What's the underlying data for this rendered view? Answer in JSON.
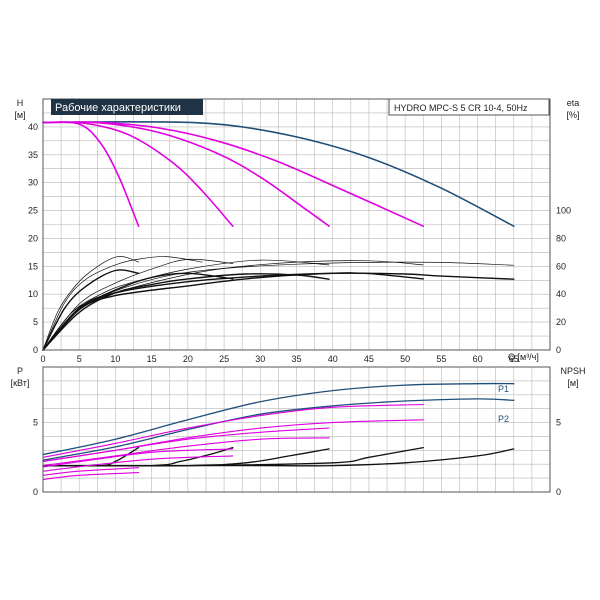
{
  "title": "Рабочие характеристики",
  "model": "HYDRO MPC-S 5 CR 10-4, 50Hz",
  "colors": {
    "blue": "#1f4e79",
    "magenta": "#e000e0",
    "black": "#111111",
    "grid": "#b8b8b8",
    "frame": "#555555",
    "title_bg": "#1f3345"
  },
  "chart_data": [
    {
      "type": "line",
      "name": "head-and-efficiency",
      "x_axis": {
        "unit": "Q [м³/ч]",
        "range": [
          0,
          70
        ],
        "ticks": [
          0,
          5,
          10,
          15,
          20,
          25,
          30,
          35,
          40,
          45,
          50,
          55,
          60,
          65
        ]
      },
      "left_axis": {
        "label": "H",
        "unit": "[м]",
        "range": [
          0,
          45
        ],
        "ticks": [
          0,
          5,
          10,
          15,
          20,
          25,
          30,
          35,
          40
        ]
      },
      "right_axis": {
        "label": "eta",
        "unit": "[%]",
        "range": [
          0,
          180
        ],
        "ticks": [
          0,
          20,
          40,
          60,
          80,
          100
        ]
      },
      "grid": true,
      "head_curves": [
        {
          "color": "blue",
          "x": [
            0,
            15,
            25,
            35,
            45,
            55,
            65
          ],
          "y": [
            40.8,
            40.9,
            40.4,
            38.2,
            34.5,
            29,
            22.2
          ]
        },
        {
          "color": "magenta",
          "x": [
            0,
            8,
            16,
            24,
            32,
            40,
            52.5
          ],
          "y": [
            40.8,
            40.8,
            39.8,
            37.5,
            34,
            29.5,
            22.2
          ]
        },
        {
          "color": "magenta",
          "x": [
            0,
            8,
            16,
            24,
            30,
            36,
            39.5
          ],
          "y": [
            40.8,
            40.7,
            39,
            35.3,
            31,
            25.5,
            22.2
          ]
        },
        {
          "color": "magenta",
          "x": [
            0,
            6,
            12,
            18,
            22,
            26.2
          ],
          "y": [
            40.8,
            40.6,
            38.5,
            33.5,
            28.5,
            22.2
          ]
        },
        {
          "color": "magenta",
          "x": [
            0,
            5,
            8,
            10.5,
            13.2
          ],
          "y": [
            40.8,
            40.5,
            37,
            31,
            22.2
          ]
        }
      ],
      "eta_curves": [
        {
          "color": "black",
          "x": [
            0,
            5,
            10,
            20,
            30,
            40,
            50,
            55,
            65
          ],
          "y": [
            0,
            30,
            41,
            49,
            53,
            55,
            54.5,
            53,
            50.8
          ]
        },
        {
          "color": "black",
          "x": [
            0,
            5,
            10,
            20,
            30,
            40,
            45,
            52.5
          ],
          "y": [
            0,
            29,
            39,
            46,
            52,
            55,
            54.8,
            51
          ]
        },
        {
          "color": "black",
          "x": [
            0,
            5,
            10,
            15,
            20,
            28,
            35,
            39.5
          ],
          "y": [
            0,
            27,
            41,
            47,
            51,
            54.5,
            53.8,
            50.8
          ]
        },
        {
          "color": "black",
          "x": [
            0,
            5,
            10,
            15,
            20,
            26.2
          ],
          "y": [
            0,
            29,
            43,
            52,
            55,
            51
          ]
        },
        {
          "color": "black",
          "x": [
            0,
            3,
            6,
            10,
            13.2
          ],
          "y": [
            0,
            30,
            46,
            57,
            55
          ]
        },
        {
          "color": "black",
          "x": [
            0,
            4,
            8,
            12,
            18,
            25,
            35,
            45,
            55,
            65
          ],
          "y": [
            0,
            27,
            38,
            46,
            54,
            58.5,
            61.5,
            62.8,
            62.8,
            60.8
          ]
        },
        {
          "color": "black",
          "x": [
            0,
            5,
            10,
            18,
            25,
            35,
            45,
            52.5
          ],
          "y": [
            0,
            29,
            41,
            52,
            58.5,
            63,
            64,
            61
          ]
        },
        {
          "color": "black",
          "x": [
            0,
            4,
            8,
            12,
            20,
            30,
            39.5
          ],
          "y": [
            0,
            27,
            40,
            48,
            58,
            64.5,
            61
          ]
        },
        {
          "color": "black",
          "x": [
            0,
            5,
            10,
            15,
            20,
            26.2
          ],
          "y": [
            0,
            33,
            48,
            58,
            65,
            62
          ]
        },
        {
          "color": "black",
          "x": [
            0,
            2,
            4,
            6,
            9,
            11,
            13.2
          ],
          "y": [
            0,
            27,
            43,
            54,
            64.5,
            67,
            63
          ]
        },
        {
          "color": "black",
          "x": [
            0,
            3,
            6,
            10,
            13,
            17,
            22
          ],
          "y": [
            0,
            34,
            51,
            61,
            65,
            67,
            63
          ]
        }
      ]
    },
    {
      "type": "line",
      "name": "power-and-npsh",
      "x_axis": {
        "range": [
          0,
          70
        ]
      },
      "left_axis": {
        "label": "P",
        "unit": "[кВт]",
        "range": [
          0,
          9
        ],
        "ticks": [
          0,
          5
        ]
      },
      "right_axis": {
        "label": "NPSH",
        "unit": "[м]",
        "range": [
          0,
          9
        ],
        "ticks": [
          0,
          5
        ]
      },
      "grid": true,
      "power_curves": [
        {
          "label": "P1",
          "color": "blue",
          "x": [
            0,
            10,
            20,
            30,
            40,
            50,
            60,
            65
          ],
          "y": [
            2.7,
            3.8,
            5.2,
            6.5,
            7.3,
            7.7,
            7.8,
            7.8
          ]
        },
        {
          "label": "P2",
          "color": "blue",
          "x": [
            0,
            10,
            20,
            30,
            40,
            50,
            60,
            65
          ],
          "y": [
            2.3,
            3.25,
            4.5,
            5.6,
            6.2,
            6.55,
            6.7,
            6.6
          ]
        },
        {
          "color": "magenta",
          "x": [
            0,
            10,
            20,
            30,
            40,
            52.5
          ],
          "y": [
            2.5,
            3.5,
            4.6,
            5.5,
            6.1,
            6.3
          ]
        },
        {
          "color": "magenta",
          "x": [
            0,
            10,
            20,
            30,
            40,
            52.5
          ],
          "y": [
            2.2,
            3.0,
            3.9,
            4.6,
            5.0,
            5.2
          ]
        },
        {
          "color": "magenta",
          "x": [
            0,
            10,
            20,
            30,
            39.5
          ],
          "y": [
            2.2,
            3.0,
            3.8,
            4.3,
            4.6
          ]
        },
        {
          "color": "magenta",
          "x": [
            0,
            10,
            20,
            30,
            39.5
          ],
          "y": [
            1.9,
            2.6,
            3.3,
            3.8,
            3.9
          ]
        },
        {
          "color": "magenta",
          "x": [
            0,
            8,
            16,
            26.2
          ],
          "y": [
            1.8,
            2.4,
            2.9,
            3.1
          ]
        },
        {
          "color": "magenta",
          "x": [
            0,
            8,
            16,
            26.2
          ],
          "y": [
            1.5,
            2.0,
            2.4,
            2.6
          ]
        },
        {
          "color": "magenta",
          "x": [
            0,
            5,
            13.2
          ],
          "y": [
            1.2,
            1.5,
            1.75
          ]
        },
        {
          "color": "magenta",
          "x": [
            0,
            5,
            13.2
          ],
          "y": [
            0.9,
            1.2,
            1.4
          ]
        }
      ],
      "npsh_curves": [
        {
          "color": "black",
          "x": [
            0,
            10,
            20,
            30,
            40,
            50,
            60,
            65
          ],
          "y": [
            1.9,
            1.9,
            1.9,
            1.9,
            1.9,
            2.1,
            2.6,
            3.1
          ]
        },
        {
          "color": "black",
          "x": [
            0,
            20,
            40,
            45,
            52.5
          ],
          "y": [
            1.9,
            1.9,
            2.1,
            2.5,
            3.2
          ]
        },
        {
          "color": "black",
          "x": [
            0,
            20,
            28,
            34,
            39.5
          ],
          "y": [
            1.9,
            1.9,
            2.1,
            2.6,
            3.1
          ]
        },
        {
          "color": "black",
          "x": [
            0,
            15,
            19,
            23,
            26.2
          ],
          "y": [
            1.9,
            1.9,
            2.2,
            2.7,
            3.2
          ]
        },
        {
          "color": "black",
          "x": [
            0,
            8,
            10,
            12,
            13.2
          ],
          "y": [
            1.9,
            1.9,
            2.2,
            2.8,
            3.2
          ]
        }
      ]
    }
  ]
}
